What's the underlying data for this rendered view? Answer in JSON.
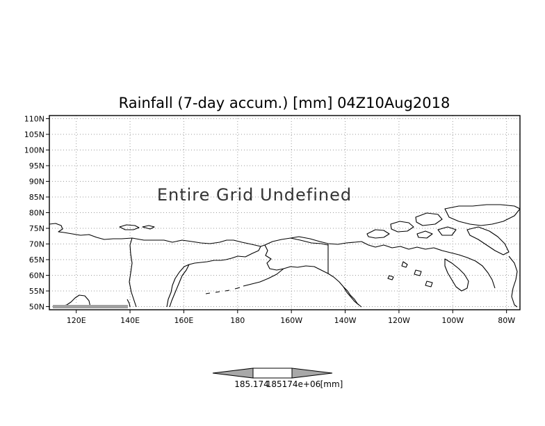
{
  "map": {
    "title": "Rainfall (7-day accum.) [mm] 04Z10Aug2018",
    "status_message": "Entire Grid Undefined",
    "lat_ticks": [
      "110N",
      "105N",
      "100N",
      "95N",
      "90N",
      "85N",
      "80N",
      "75N",
      "70N",
      "65N",
      "60N",
      "55N",
      "50N"
    ],
    "lon_ticks": [
      "120E",
      "140E",
      "160E",
      "180",
      "160W",
      "140W",
      "120W",
      "100W",
      "80W"
    ],
    "lat_values": [
      110,
      105,
      100,
      95,
      90,
      85,
      80,
      75,
      70,
      65,
      60,
      55,
      50
    ],
    "lon_values": [
      120,
      140,
      160,
      180,
      200,
      220,
      240,
      260,
      280
    ],
    "lon_range": [
      110,
      285
    ],
    "lat_range": [
      49,
      111
    ],
    "grid": true,
    "colors": {
      "coastline": "#000000",
      "grid": "#9a9a9a",
      "frame": "#000000",
      "undefined_fill": "#a0a0a0"
    }
  },
  "colorbar": {
    "min_label": "185.174",
    "max_label": "185174e+06",
    "unit_label": "[mm]",
    "arrow_color": "#a8a8a8",
    "center_color": "#ffffff"
  }
}
